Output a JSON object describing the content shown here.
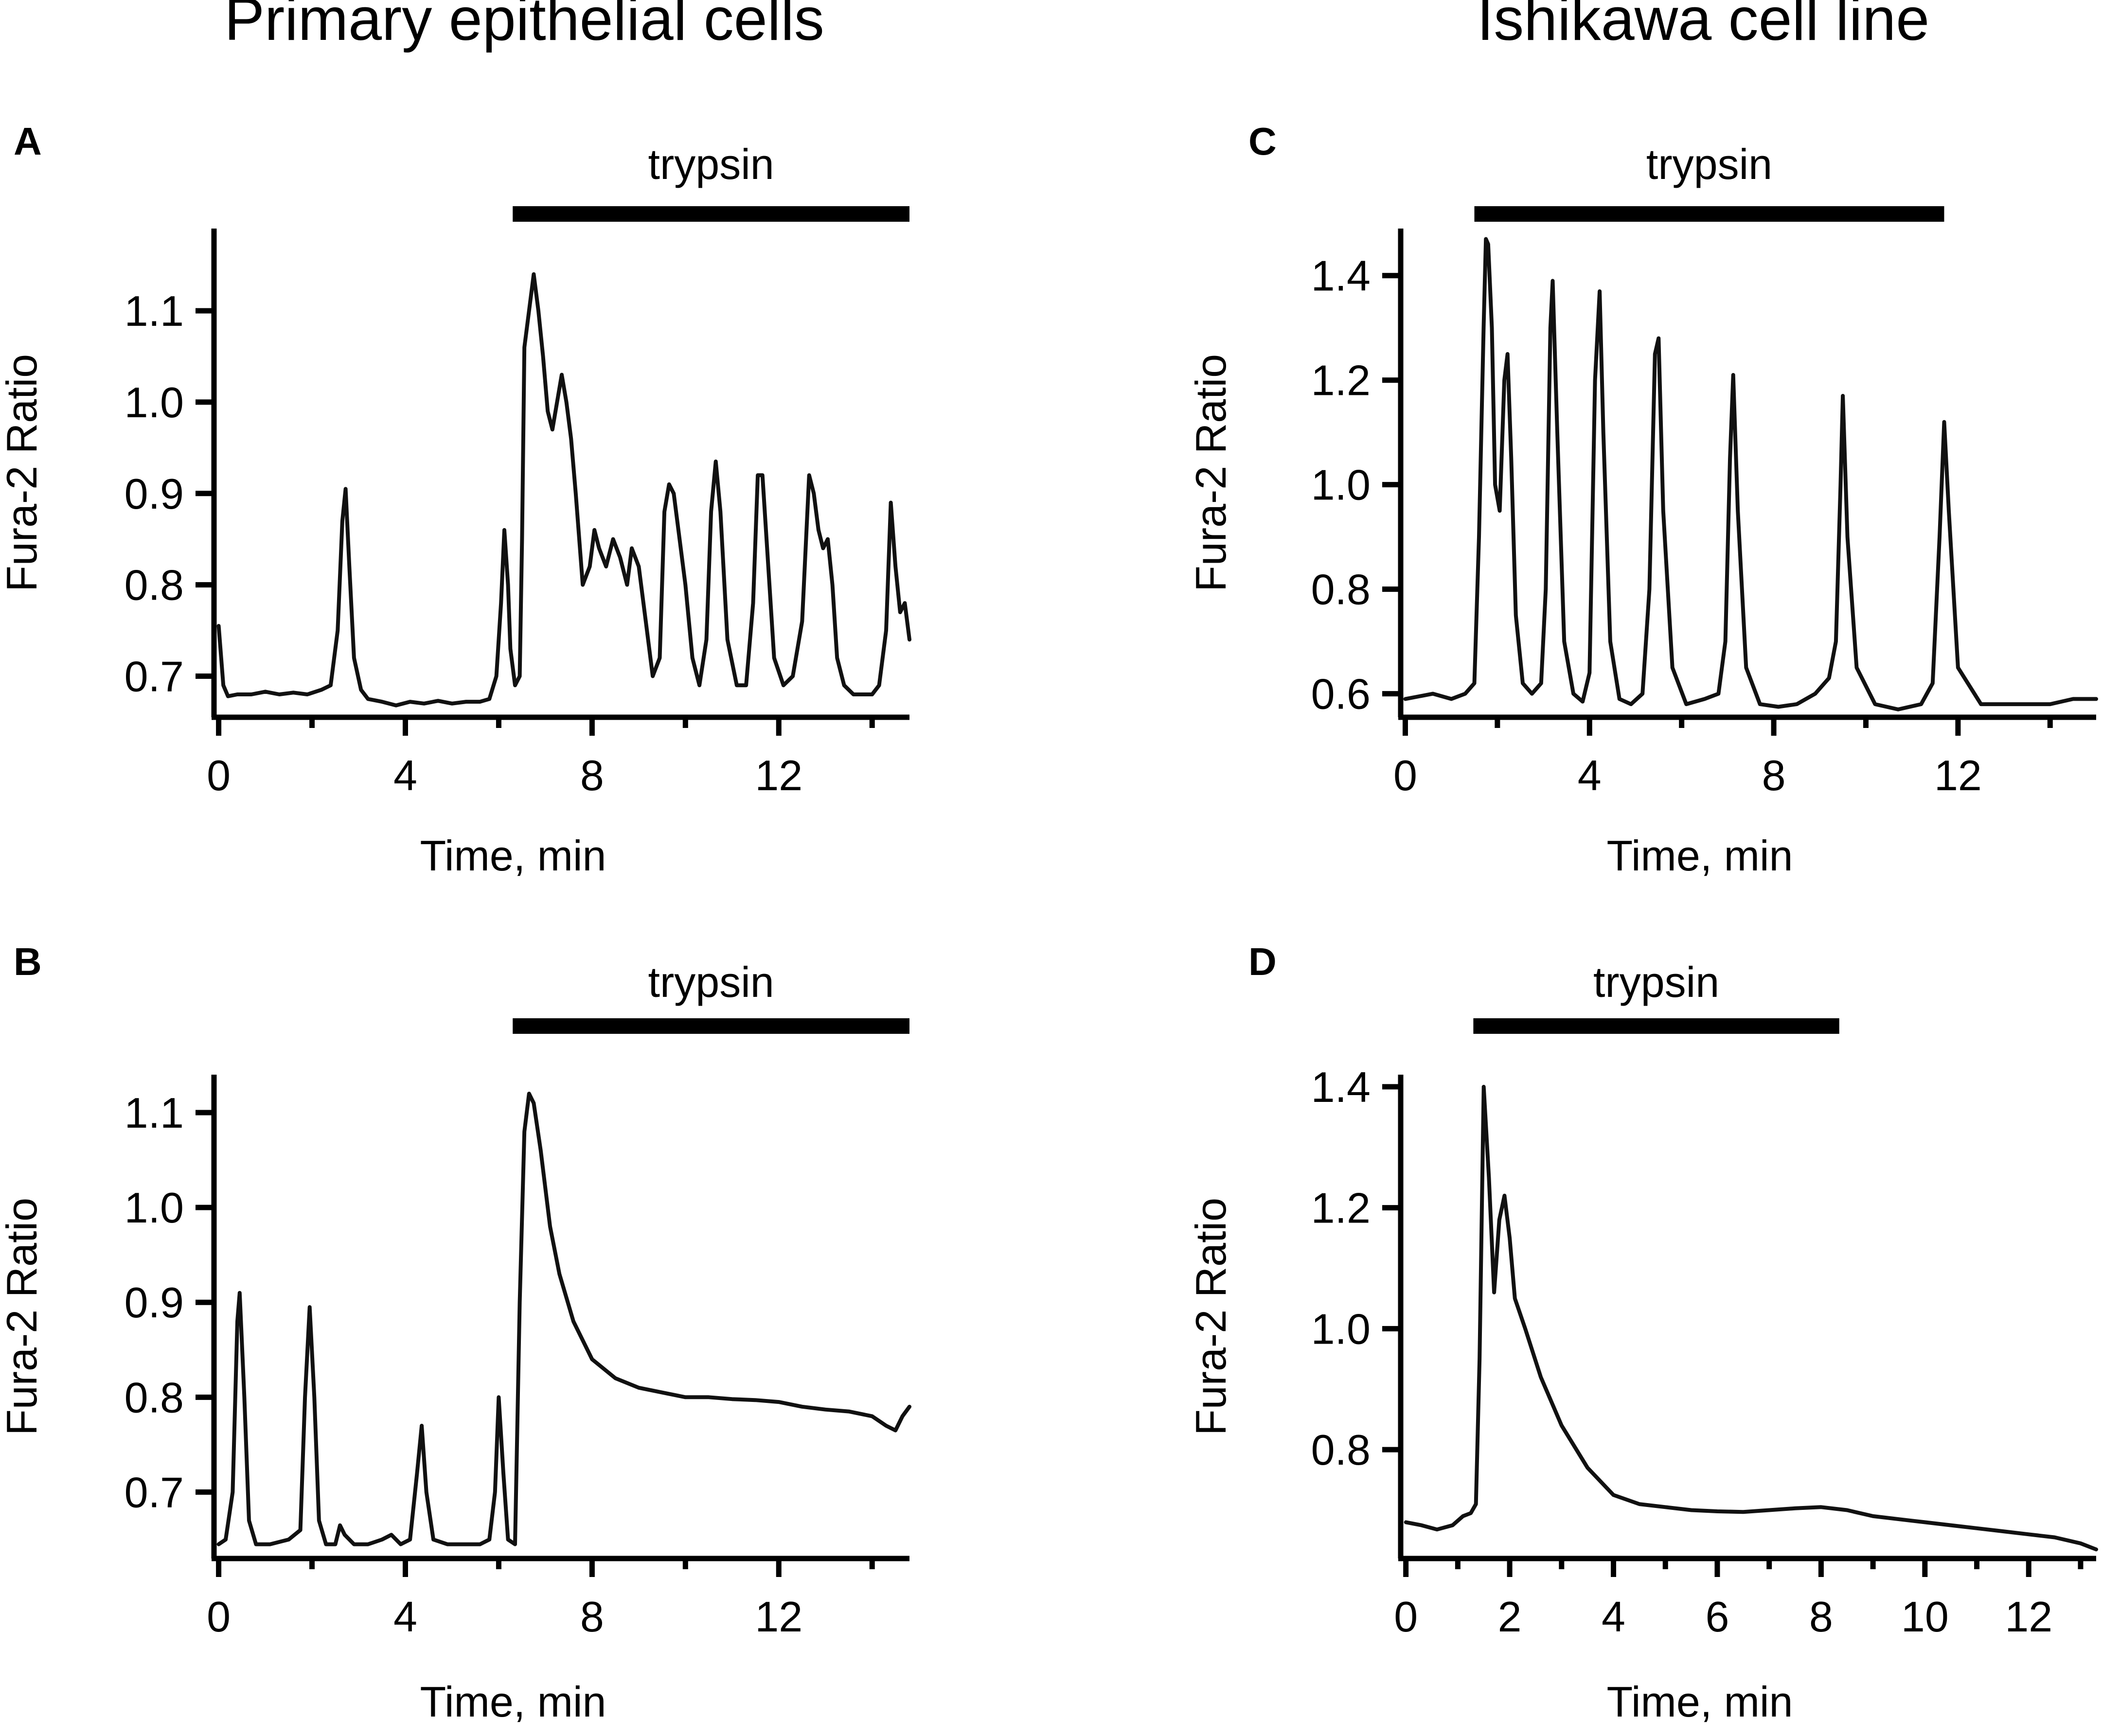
{
  "column_titles": [
    "Primary epithelial cells",
    "Ishikawa cell line"
  ],
  "chart_data": [
    {
      "panel": "A",
      "type": "line",
      "stimulus": {
        "label": "trypsin",
        "start": 6.3,
        "end": 14.8
      },
      "xlabel": "Time, min",
      "ylabel": "Fura-2 Ratio",
      "xlim": [
        -0.1,
        14.8
      ],
      "ylim": [
        0.655,
        1.19
      ],
      "xticks": [
        0,
        4,
        8,
        12
      ],
      "xminor": [
        2,
        6,
        10,
        14
      ],
      "yticks": [
        0.7,
        0.8,
        0.9,
        1.0,
        1.1
      ],
      "ytick_labels": [
        "0.7",
        "0.8",
        "0.9",
        "1.0",
        "1.1"
      ],
      "series": [
        {
          "name": "trace",
          "x": [
            0,
            0.1,
            0.2,
            0.4,
            0.7,
            1.0,
            1.3,
            1.6,
            1.9,
            2.2,
            2.4,
            2.55,
            2.65,
            2.72,
            2.8,
            2.9,
            3.05,
            3.2,
            3.5,
            3.8,
            4.1,
            4.4,
            4.7,
            5.0,
            5.3,
            5.6,
            5.8,
            5.95,
            6.05,
            6.12,
            6.2,
            6.25,
            6.35,
            6.45,
            6.5,
            6.55,
            6.65,
            6.75,
            6.85,
            6.95,
            7.05,
            7.15,
            7.25,
            7.35,
            7.45,
            7.55,
            7.65,
            7.8,
            7.95,
            8.05,
            8.15,
            8.3,
            8.45,
            8.6,
            8.75,
            8.85,
            9.0,
            9.15,
            9.3,
            9.45,
            9.55,
            9.65,
            9.75,
            9.85,
            10.0,
            10.15,
            10.3,
            10.45,
            10.55,
            10.65,
            10.75,
            10.9,
            11.1,
            11.3,
            11.45,
            11.55,
            11.65,
            11.75,
            11.9,
            12.1,
            12.3,
            12.5,
            12.65,
            12.75,
            12.85,
            12.95,
            13.05,
            13.15,
            13.25,
            13.4,
            13.6,
            13.8,
            14.0,
            14.15,
            14.3,
            14.4,
            14.5,
            14.6,
            14.7,
            14.8
          ],
          "values": [
            0.755,
            0.69,
            0.678,
            0.68,
            0.68,
            0.683,
            0.68,
            0.682,
            0.68,
            0.685,
            0.69,
            0.75,
            0.87,
            0.905,
            0.82,
            0.72,
            0.685,
            0.675,
            0.672,
            0.668,
            0.672,
            0.67,
            0.673,
            0.67,
            0.672,
            0.672,
            0.675,
            0.7,
            0.78,
            0.86,
            0.8,
            0.73,
            0.69,
            0.7,
            0.85,
            1.06,
            1.1,
            1.14,
            1.1,
            1.05,
            0.99,
            0.97,
            1.0,
            1.03,
            1.0,
            0.96,
            0.9,
            0.8,
            0.82,
            0.86,
            0.84,
            0.82,
            0.85,
            0.83,
            0.8,
            0.84,
            0.82,
            0.76,
            0.7,
            0.72,
            0.88,
            0.91,
            0.9,
            0.86,
            0.8,
            0.72,
            0.69,
            0.74,
            0.88,
            0.935,
            0.88,
            0.74,
            0.69,
            0.69,
            0.78,
            0.92,
            0.92,
            0.84,
            0.72,
            0.69,
            0.7,
            0.76,
            0.92,
            0.9,
            0.86,
            0.84,
            0.85,
            0.8,
            0.72,
            0.69,
            0.68,
            0.68,
            0.68,
            0.69,
            0.75,
            0.89,
            0.82,
            0.77,
            0.78,
            0.74
          ]
        }
      ]
    },
    {
      "panel": "B",
      "type": "line",
      "stimulus": {
        "label": "trypsin",
        "start": 6.3,
        "end": 14.8
      },
      "xlabel": "Time, min",
      "ylabel": "Fura-2 Ratio",
      "xlim": [
        -0.1,
        14.8
      ],
      "ylim": [
        0.63,
        1.14
      ],
      "xticks": [
        0,
        4,
        8,
        12
      ],
      "xminor": [
        2,
        6,
        10,
        14
      ],
      "yticks": [
        0.7,
        0.8,
        0.9,
        1.0,
        1.1
      ],
      "ytick_labels": [
        "0.7",
        "0.8",
        "0.9",
        "1.0",
        "1.1"
      ],
      "series": [
        {
          "name": "trace",
          "x": [
            0,
            0.15,
            0.3,
            0.4,
            0.45,
            0.55,
            0.65,
            0.8,
            1.1,
            1.5,
            1.75,
            1.85,
            1.95,
            2.05,
            2.15,
            2.3,
            2.5,
            2.6,
            2.7,
            2.9,
            3.2,
            3.5,
            3.7,
            3.9,
            4.1,
            4.25,
            4.35,
            4.45,
            4.6,
            4.9,
            5.3,
            5.6,
            5.8,
            5.92,
            6.0,
            6.1,
            6.2,
            6.35,
            6.45,
            6.55,
            6.65,
            6.75,
            6.9,
            7.1,
            7.3,
            7.6,
            8.0,
            8.5,
            9.0,
            9.5,
            10.0,
            10.5,
            11.0,
            11.5,
            12.0,
            12.5,
            13.0,
            13.5,
            14.0,
            14.3,
            14.5,
            14.65,
            14.8
          ],
          "values": [
            0.645,
            0.65,
            0.7,
            0.88,
            0.91,
            0.8,
            0.67,
            0.645,
            0.645,
            0.65,
            0.66,
            0.8,
            0.895,
            0.8,
            0.67,
            0.645,
            0.645,
            0.665,
            0.655,
            0.645,
            0.645,
            0.65,
            0.655,
            0.645,
            0.65,
            0.72,
            0.77,
            0.7,
            0.65,
            0.645,
            0.645,
            0.645,
            0.65,
            0.7,
            0.8,
            0.72,
            0.65,
            0.645,
            0.9,
            1.08,
            1.12,
            1.11,
            1.06,
            0.98,
            0.93,
            0.88,
            0.84,
            0.82,
            0.81,
            0.805,
            0.8,
            0.8,
            0.798,
            0.797,
            0.795,
            0.79,
            0.787,
            0.785,
            0.78,
            0.77,
            0.765,
            0.78,
            0.79
          ]
        }
      ]
    },
    {
      "panel": "C",
      "type": "line",
      "stimulus": {
        "label": "trypsin",
        "start": 1.5,
        "end": 11.7
      },
      "xlabel": "Time, min",
      "ylabel": "Fura-2 Ratio",
      "xlim": [
        -0.1,
        15.0
      ],
      "ylim": [
        0.555,
        1.49
      ],
      "xticks": [
        0,
        4,
        8,
        12
      ],
      "xminor": [
        2,
        6,
        10,
        14
      ],
      "yticks": [
        0.6,
        0.8,
        1.0,
        1.2,
        1.4
      ],
      "ytick_labels": [
        "0.6",
        "0.8",
        "1.0",
        "1.2",
        "1.4"
      ],
      "series": [
        {
          "name": "trace",
          "x": [
            0,
            0.3,
            0.6,
            1.0,
            1.3,
            1.5,
            1.6,
            1.7,
            1.75,
            1.8,
            1.88,
            1.95,
            2.05,
            2.15,
            2.22,
            2.3,
            2.4,
            2.55,
            2.75,
            2.95,
            3.05,
            3.15,
            3.2,
            3.3,
            3.45,
            3.65,
            3.85,
            4.0,
            4.12,
            4.22,
            4.3,
            4.45,
            4.65,
            4.9,
            5.15,
            5.3,
            5.42,
            5.5,
            5.6,
            5.8,
            6.1,
            6.5,
            6.8,
            6.95,
            7.05,
            7.12,
            7.22,
            7.4,
            7.7,
            8.1,
            8.5,
            8.9,
            9.2,
            9.35,
            9.45,
            9.5,
            9.6,
            9.8,
            10.2,
            10.7,
            11.2,
            11.45,
            11.6,
            11.7,
            11.8,
            12.0,
            12.5,
            13.0,
            13.5,
            14.0,
            14.5,
            15.0
          ],
          "values": [
            0.59,
            0.595,
            0.6,
            0.59,
            0.6,
            0.62,
            0.9,
            1.3,
            1.47,
            1.46,
            1.3,
            1.0,
            0.95,
            1.2,
            1.25,
            1.05,
            0.75,
            0.62,
            0.6,
            0.62,
            0.8,
            1.3,
            1.39,
            1.1,
            0.7,
            0.6,
            0.585,
            0.64,
            1.2,
            1.37,
            1.1,
            0.7,
            0.59,
            0.58,
            0.6,
            0.8,
            1.25,
            1.28,
            0.95,
            0.65,
            0.58,
            0.59,
            0.6,
            0.7,
            1.05,
            1.21,
            0.95,
            0.65,
            0.58,
            0.575,
            0.58,
            0.6,
            0.63,
            0.7,
            1.0,
            1.17,
            0.9,
            0.65,
            0.58,
            0.57,
            0.58,
            0.62,
            0.9,
            1.12,
            0.95,
            0.65,
            0.58,
            0.58,
            0.58,
            0.58,
            0.59,
            0.59
          ]
        }
      ]
    },
    {
      "panel": "D",
      "type": "line",
      "stimulus": {
        "label": "trypsin",
        "start": 1.3,
        "end": 8.35
      },
      "xlabel": "Time, min",
      "ylabel": "Fura-2 Ratio",
      "xlim": [
        -0.1,
        13.3
      ],
      "ylim": [
        0.62,
        1.42
      ],
      "xticks": [
        0,
        2,
        4,
        6,
        8,
        10,
        12
      ],
      "xminor": [
        1,
        3,
        5,
        7,
        9,
        11,
        13
      ],
      "yticks": [
        0.8,
        1.0,
        1.2,
        1.4
      ],
      "ytick_labels": [
        "0.8",
        "1.0",
        "1.2",
        "1.4"
      ],
      "series": [
        {
          "name": "trace",
          "x": [
            0,
            0.3,
            0.6,
            0.9,
            1.1,
            1.25,
            1.35,
            1.42,
            1.5,
            1.6,
            1.7,
            1.8,
            1.9,
            2.0,
            2.1,
            2.3,
            2.6,
            3.0,
            3.5,
            4.0,
            4.5,
            5.0,
            5.5,
            6.0,
            6.5,
            7.0,
            7.5,
            8.0,
            8.5,
            9.0,
            9.5,
            10.0,
            10.5,
            11.0,
            11.5,
            12.0,
            12.5,
            13.0,
            13.3
          ],
          "values": [
            0.68,
            0.675,
            0.668,
            0.675,
            0.69,
            0.695,
            0.71,
            0.95,
            1.4,
            1.25,
            1.06,
            1.18,
            1.22,
            1.15,
            1.05,
            1.0,
            0.92,
            0.84,
            0.77,
            0.725,
            0.71,
            0.705,
            0.7,
            0.698,
            0.697,
            0.7,
            0.703,
            0.705,
            0.7,
            0.69,
            0.685,
            0.68,
            0.675,
            0.67,
            0.665,
            0.66,
            0.655,
            0.645,
            0.635
          ]
        }
      ]
    }
  ]
}
